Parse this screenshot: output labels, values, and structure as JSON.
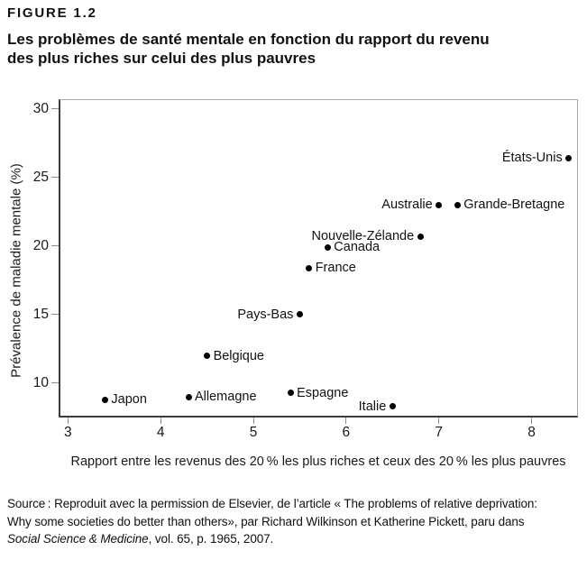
{
  "figure_label": "FIGURE 1.2",
  "title": "Les problèmes de santé mentale en fonction du rapport du revenu\ndes plus riches sur celui des plus pauvres",
  "chart_data": {
    "type": "scatter",
    "title": "Les problèmes de santé mentale en fonction du rapport du revenu des plus riches sur celui des plus pauvres",
    "xlabel": "Rapport entre les revenus des 20 % les plus riches et ceux des 20 % les plus pauvres",
    "ylabel": "Prévalence de maladie mentale (%)",
    "xlim": [
      2.9,
      8.5
    ],
    "ylim": [
      7.5,
      30.7
    ],
    "x_ticks": [
      3,
      4,
      5,
      6,
      7,
      8
    ],
    "y_ticks": [
      10,
      15,
      20,
      25,
      30
    ],
    "grid": false,
    "legend": "none",
    "point_color": "#000000",
    "points": [
      {
        "label": "Japon",
        "x": 3.4,
        "y": 8.8,
        "label_side": "right"
      },
      {
        "label": "Allemagne",
        "x": 4.3,
        "y": 9.0,
        "label_side": "right"
      },
      {
        "label": "Belgique",
        "x": 4.5,
        "y": 12.0,
        "label_side": "right"
      },
      {
        "label": "Espagne",
        "x": 5.4,
        "y": 9.3,
        "label_side": "right"
      },
      {
        "label": "Pays-Bas",
        "x": 5.5,
        "y": 15.0,
        "label_side": "left"
      },
      {
        "label": "France",
        "x": 5.6,
        "y": 18.4,
        "label_side": "right"
      },
      {
        "label": "Canada",
        "x": 5.8,
        "y": 19.9,
        "label_side": "right"
      },
      {
        "label": "Italie",
        "x": 6.5,
        "y": 8.3,
        "label_side": "left"
      },
      {
        "label": "Nouvelle-Zélande",
        "x": 6.8,
        "y": 20.7,
        "label_side": "left"
      },
      {
        "label": "Australie",
        "x": 7.0,
        "y": 23.0,
        "label_side": "left"
      },
      {
        "label": "Grande-Bretagne",
        "x": 7.2,
        "y": 23.0,
        "label_side": "right"
      },
      {
        "label": "États-Unis",
        "x": 8.4,
        "y": 26.4,
        "label_side": "left"
      }
    ]
  },
  "source": {
    "line1": "Source : Reproduit avec la permission de Elsevier, de l’article « The problems of relative deprivation:",
    "line2": "Why some societies do better than others», par Richard Wilkinson et Katherine Pickett, paru dans",
    "line3_italic": "Social Science & Medicine",
    "line3_rest": ", vol. 65, p. 1965, 2007."
  },
  "colors": {
    "text": "#1a1a1a",
    "axis": "#3d3d3d",
    "frame": "#a9a9a9",
    "tick": "#8c8c8c",
    "point": "#000000"
  }
}
